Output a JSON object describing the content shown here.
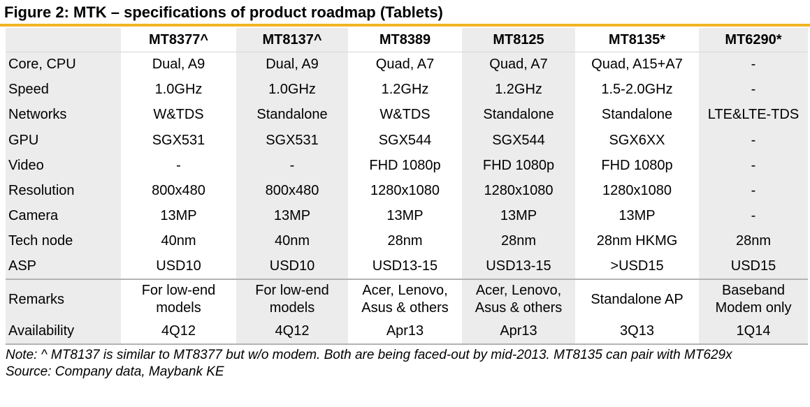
{
  "figure": {
    "title": "Figure 2: MTK – specifications of product roadmap (Tablets)"
  },
  "table": {
    "columns": [
      "MT8377^",
      "MT8137^",
      "MT8389",
      "MT8125",
      "MT8135*",
      "MT6290*"
    ],
    "rows": [
      {
        "label": "Core, CPU",
        "cells": [
          "Dual, A9",
          "Dual, A9",
          "Quad, A7",
          "Quad, A7",
          "Quad, A15+A7",
          "-"
        ]
      },
      {
        "label": "Speed",
        "cells": [
          "1.0GHz",
          "1.0GHz",
          "1.2GHz",
          "1.2GHz",
          "1.5-2.0GHz",
          "-"
        ]
      },
      {
        "label": "Networks",
        "cells": [
          "W&TDS",
          "Standalone",
          "W&TDS",
          "Standalone",
          "Standalone",
          "LTE&LTE-TDS"
        ]
      },
      {
        "label": "GPU",
        "cells": [
          "SGX531",
          "SGX531",
          "SGX544",
          "SGX544",
          "SGX6XX",
          "-"
        ]
      },
      {
        "label": "Video",
        "cells": [
          "-",
          "-",
          "FHD 1080p",
          "FHD 1080p",
          "FHD 1080p",
          "-"
        ]
      },
      {
        "label": "Resolution",
        "cells": [
          "800x480",
          "800x480",
          "1280x1080",
          "1280x1080",
          "1280x1080",
          "-"
        ]
      },
      {
        "label": "Camera",
        "cells": [
          "13MP",
          "13MP",
          "13MP",
          "13MP",
          "13MP",
          "-"
        ]
      },
      {
        "label": "Tech node",
        "cells": [
          "40nm",
          "40nm",
          "28nm",
          "28nm",
          "28nm HKMG",
          "28nm"
        ]
      },
      {
        "label": "ASP",
        "cells": [
          "USD10",
          "USD10",
          "USD13-15",
          "USD13-15",
          ">USD15",
          "USD15"
        ]
      },
      {
        "label": "Remarks",
        "cells": [
          [
            "For low-end",
            "models"
          ],
          [
            "For low-end",
            "models"
          ],
          [
            "Acer, Lenovo,",
            "Asus & others"
          ],
          [
            "Acer, Lenovo,",
            "Asus & others"
          ],
          [
            "Standalone AP"
          ],
          [
            "Baseband",
            "Modem only"
          ]
        ]
      },
      {
        "label": "Availability",
        "cells": [
          "4Q12",
          "4Q12",
          "Apr13",
          "Apr13",
          "3Q13",
          "1Q14"
        ]
      }
    ]
  },
  "notes": {
    "note": "Note: ^ MT8137 is similar to MT8377 but w/o modem. Both are being faced-out by mid-2013. MT8135 can pair with MT629x",
    "source": "Source: Company data, Maybank KE"
  },
  "colors": {
    "accent_rule": "#f1b521",
    "shaded_column": "#ececec",
    "separator": "#b3b3b3"
  }
}
